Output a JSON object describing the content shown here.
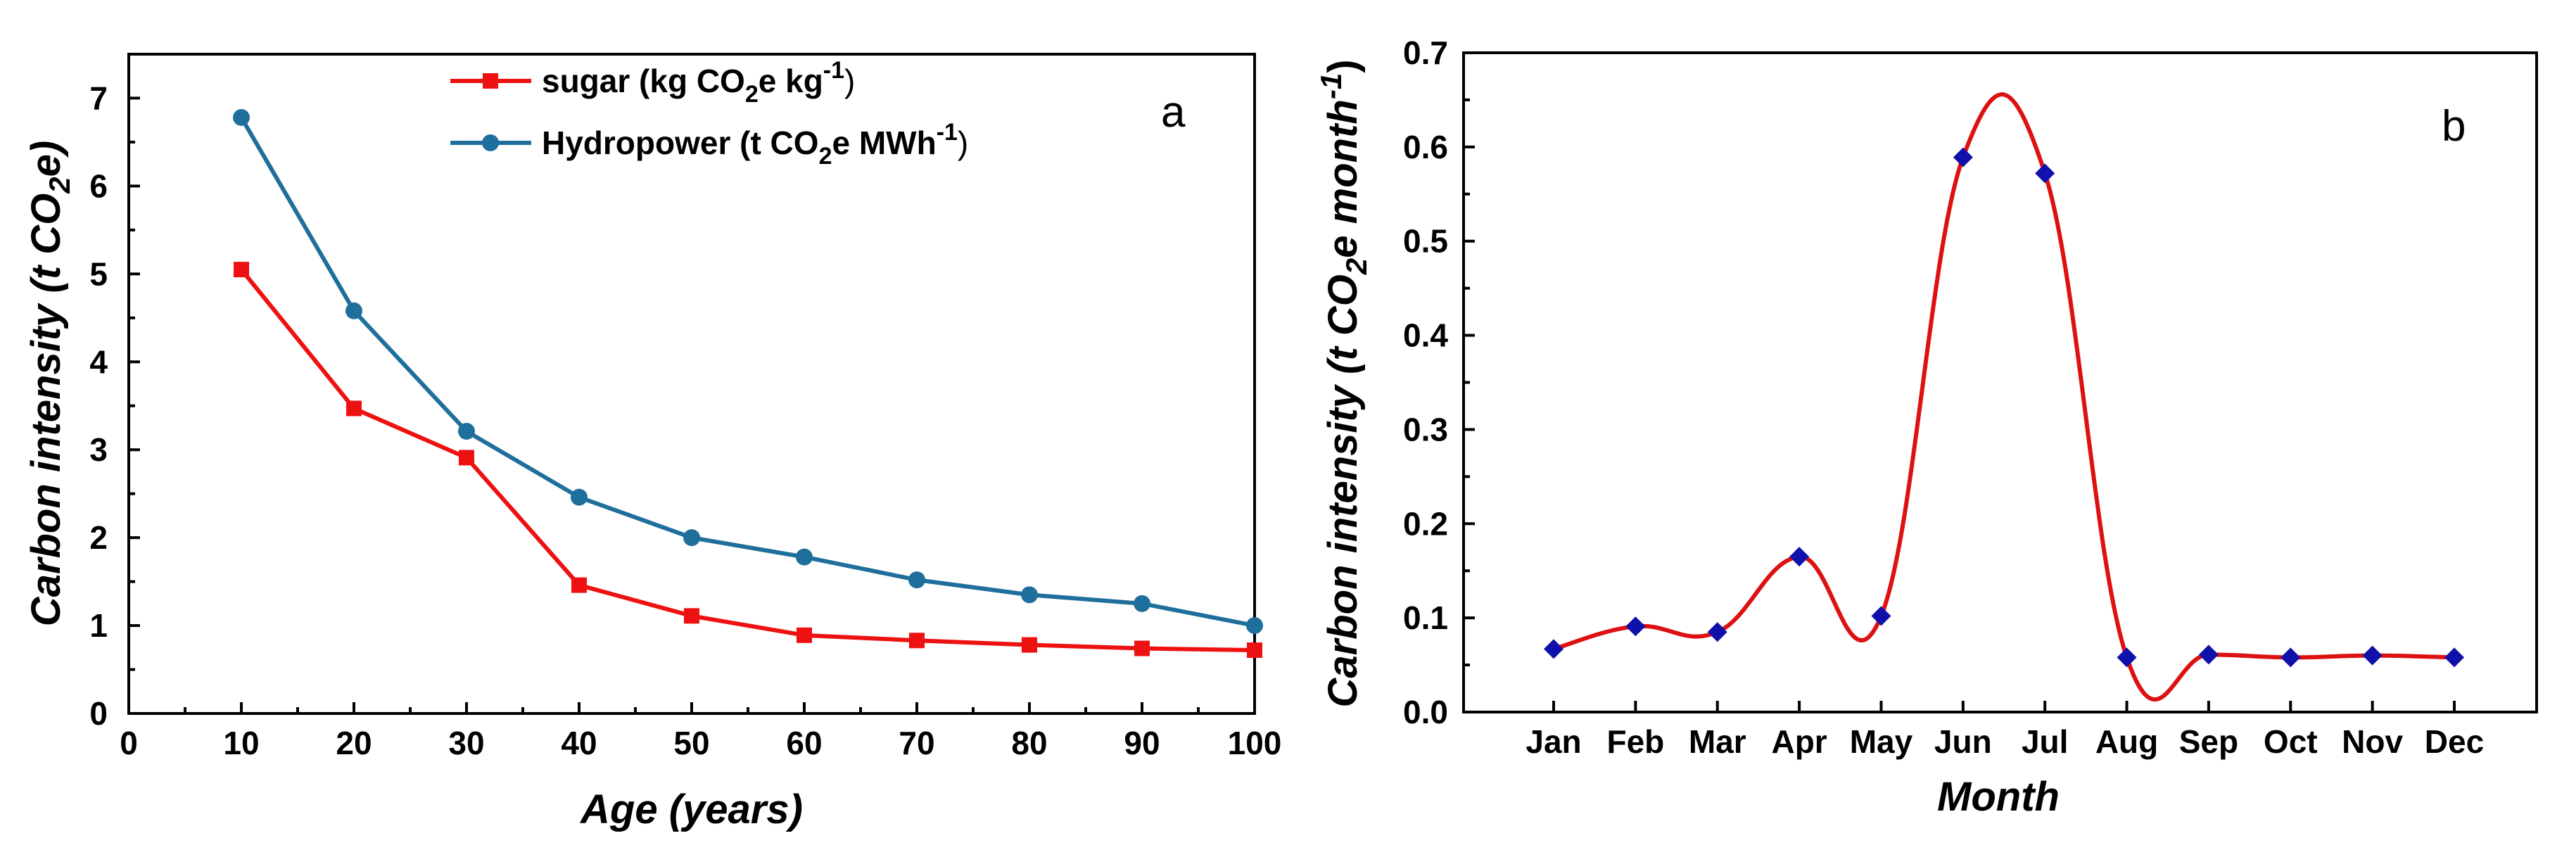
{
  "chart_data": [
    {
      "panel": "a",
      "type": "line",
      "xlabel": "Age (years)",
      "ylabel": "Carbon intensity (t CO2e)",
      "xlim": [
        0,
        100
      ],
      "ylim": [
        0,
        7.5
      ],
      "xticks": [
        0,
        10,
        20,
        30,
        40,
        50,
        60,
        70,
        80,
        90,
        100
      ],
      "yticks": [
        0,
        1,
        2,
        3,
        4,
        5,
        6,
        7
      ],
      "x": [
        10,
        20,
        30,
        40,
        50,
        60,
        70,
        80,
        90,
        100
      ],
      "series": [
        {
          "name": "sugar (kg CO2e kg-1)",
          "legend_label": {
            "pre": "sugar (kg CO",
            "sub": "2",
            "mid": "e kg",
            "sup": "-1",
            "post": ")"
          },
          "color": "#ee1111",
          "marker": "square",
          "values": [
            5.05,
            3.47,
            2.91,
            1.46,
            1.11,
            0.89,
            0.83,
            0.78,
            0.74,
            0.72
          ]
        },
        {
          "name": "Hydropower (t CO2e MWh-1)",
          "legend_label": {
            "pre": "Hydropower (t CO",
            "sub": "2",
            "mid": "e MWh",
            "sup": "-1",
            "post": ")"
          },
          "color": "#1f6f9c",
          "marker": "circle",
          "values": [
            6.78,
            4.58,
            3.21,
            2.46,
            2.0,
            1.78,
            1.52,
            1.35,
            1.25,
            1.0
          ]
        }
      ],
      "ylabel_parts": {
        "pre": "Carbon intensity (t CO",
        "sub": "2",
        "post": "e)"
      },
      "legend_position": "top-center"
    },
    {
      "panel": "b",
      "type": "line",
      "xlabel": "Month",
      "ylabel": "Carbon intensity (t CO2e month-1)",
      "categories": [
        "Jan",
        "Feb",
        "Mar",
        "Apr",
        "May",
        "Jun",
        "Jul",
        "Aug",
        "Sep",
        "Oct",
        "Nov",
        "Dec"
      ],
      "ylim": [
        0,
        0.7
      ],
      "yticks": [
        "0.0",
        "0.1",
        "0.2",
        "0.3",
        "0.4",
        "0.5",
        "0.6",
        "0.7"
      ],
      "series": [
        {
          "name": "Carbon intensity",
          "color": "#1010aa",
          "line_color": "#dd1111",
          "marker": "diamond",
          "smoothed": true,
          "values": [
            0.067,
            0.091,
            0.085,
            0.165,
            0.102,
            0.589,
            0.572,
            0.058,
            0.061,
            0.058,
            0.06,
            0.058
          ]
        }
      ],
      "ylabel_parts": {
        "pre": "Carbon intensity (t CO",
        "sub": "2",
        "mid": "e month",
        "sup": "-1",
        "post": ")"
      }
    }
  ]
}
